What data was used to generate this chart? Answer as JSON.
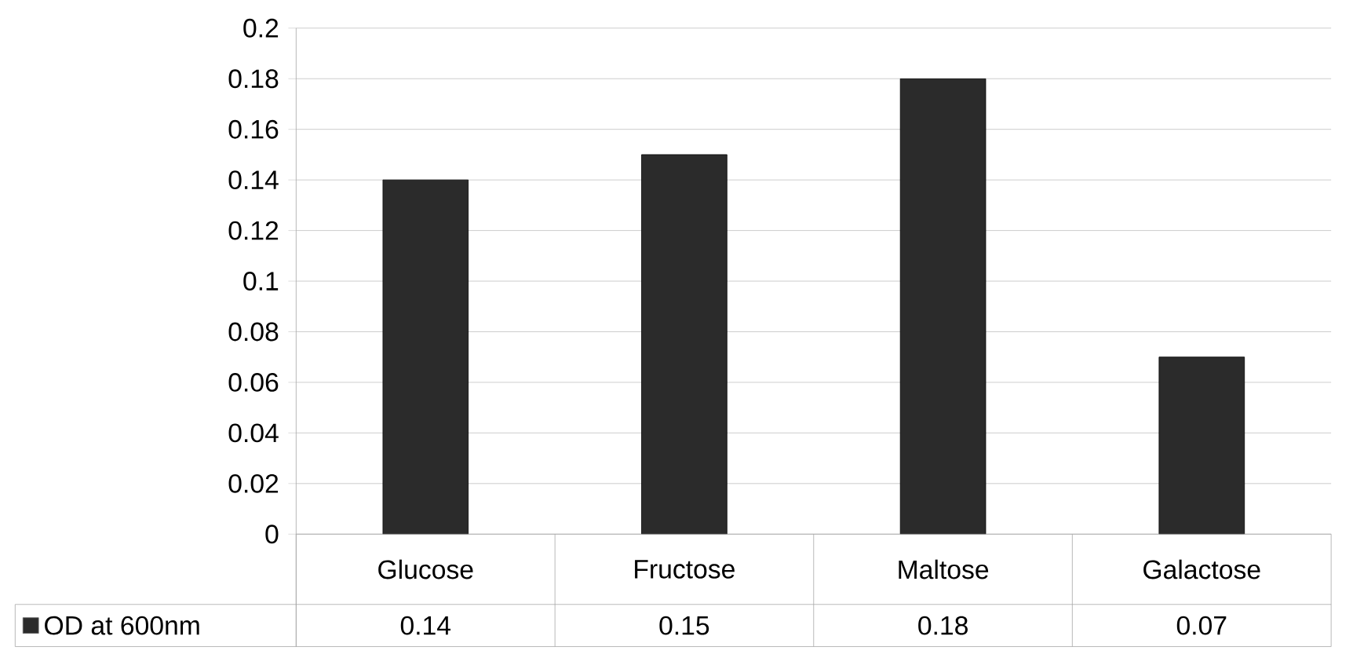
{
  "chart_data": {
    "type": "bar",
    "categories": [
      "Glucose",
      "Fructose",
      "Maltose",
      "Galactose"
    ],
    "series": [
      {
        "name": "OD at 600nm",
        "color": "#2b2b2b",
        "values": [
          0.14,
          0.15,
          0.18,
          0.07
        ]
      }
    ],
    "ylim": [
      0,
      0.2
    ],
    "yticks": [
      0,
      0.02,
      0.04,
      0.06,
      0.08,
      0.1,
      0.12,
      0.14,
      0.16,
      0.18,
      0.2
    ],
    "grid": "y",
    "legend": "bottom",
    "data_labels": true
  }
}
